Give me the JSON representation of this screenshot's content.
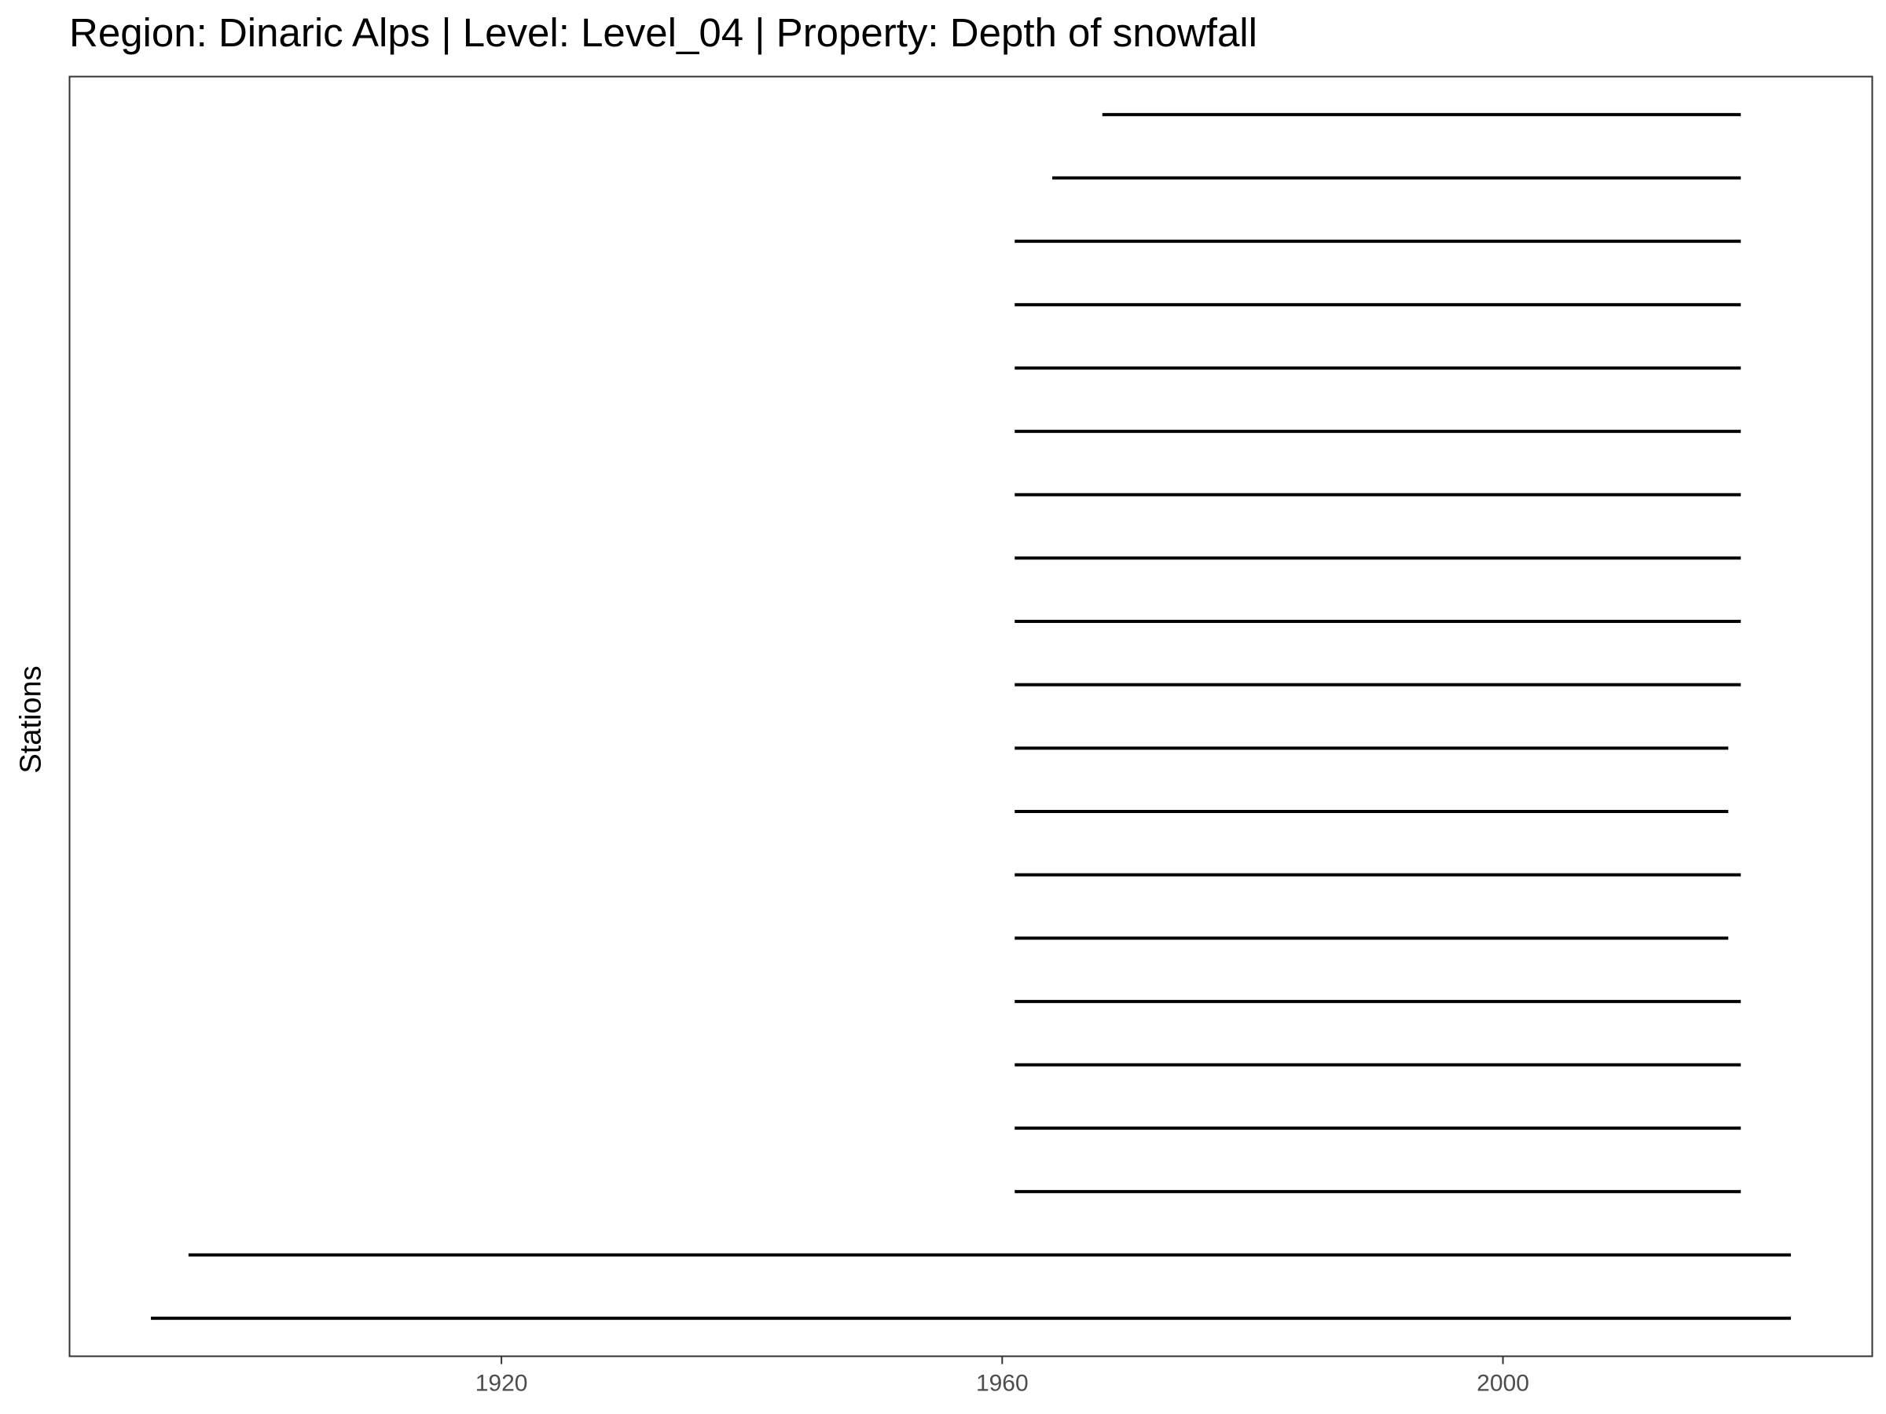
{
  "chart_data": {
    "type": "line",
    "title": "Region: Dinaric Alps | Level: Level_04 | Property: Depth of snowfall",
    "xlabel": "",
    "ylabel": "Stations",
    "xlim": [
      1885.5,
      2029.5
    ],
    "x_ticks": [
      1920,
      1960,
      2000
    ],
    "x_tick_labels": [
      "1920",
      "1960",
      "2000"
    ],
    "grid": false,
    "segments": [
      {
        "station": 1,
        "start": 1892,
        "end": 2023
      },
      {
        "station": 2,
        "start": 1895,
        "end": 2023
      },
      {
        "station": 3,
        "start": 1961,
        "end": 2019
      },
      {
        "station": 4,
        "start": 1961,
        "end": 2019
      },
      {
        "station": 5,
        "start": 1961,
        "end": 2019
      },
      {
        "station": 6,
        "start": 1961,
        "end": 2019
      },
      {
        "station": 7,
        "start": 1961,
        "end": 2018
      },
      {
        "station": 8,
        "start": 1961,
        "end": 2019
      },
      {
        "station": 9,
        "start": 1961,
        "end": 2018
      },
      {
        "station": 10,
        "start": 1961,
        "end": 2018
      },
      {
        "station": 11,
        "start": 1961,
        "end": 2019
      },
      {
        "station": 12,
        "start": 1961,
        "end": 2019
      },
      {
        "station": 13,
        "start": 1961,
        "end": 2019
      },
      {
        "station": 14,
        "start": 1961,
        "end": 2019
      },
      {
        "station": 15,
        "start": 1961,
        "end": 2019
      },
      {
        "station": 16,
        "start": 1961,
        "end": 2019
      },
      {
        "station": 17,
        "start": 1961,
        "end": 2019
      },
      {
        "station": 18,
        "start": 1961,
        "end": 2019
      },
      {
        "station": 19,
        "start": 1964,
        "end": 2019
      },
      {
        "station": 20,
        "start": 1968,
        "end": 2019
      }
    ],
    "line_color": "#000000"
  }
}
